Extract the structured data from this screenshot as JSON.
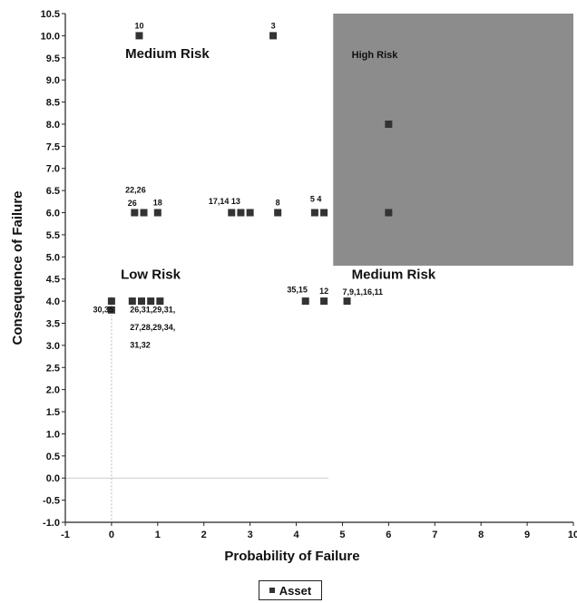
{
  "chart_data": {
    "type": "scatter",
    "xlabel": "Probability of Failure",
    "ylabel": "Consequence of Failure",
    "xlim": [
      -1,
      10
    ],
    "ylim": [
      -1,
      10.5
    ],
    "xticks": [
      "-1",
      "0",
      "1",
      "2",
      "3",
      "4",
      "5",
      "6",
      "7",
      "8",
      "9",
      "10"
    ],
    "yticks": [
      "-1.0",
      "-0.5",
      "0.0",
      "0.5",
      "1.0",
      "1.5",
      "2.0",
      "2.5",
      "3.0",
      "3.5",
      "4.0",
      "4.5",
      "5.0",
      "5.5",
      "6.0",
      "6.5",
      "7.0",
      "7.5",
      "8.0",
      "8.5",
      "9.0",
      "9.5",
      "10.0",
      "10.5"
    ],
    "legend": {
      "placement": "bottom-center",
      "entries": [
        "Asset"
      ]
    },
    "zones": [
      {
        "label": "Medium Risk",
        "x": 0.3,
        "y": 9.5,
        "size": "large"
      },
      {
        "label": "High Risk",
        "x": 5.2,
        "y": 9.5,
        "size": "small"
      },
      {
        "label": "Low Risk",
        "x": 0.2,
        "y": 4.5,
        "size": "large"
      },
      {
        "label": "Medium Risk",
        "x": 5.2,
        "y": 4.5,
        "size": "large"
      }
    ],
    "high_risk_region": {
      "x": [
        4.8,
        10
      ],
      "y": [
        4.8,
        10.5
      ],
      "color": "#8c8c8c"
    },
    "series": [
      {
        "name": "Asset",
        "color": "#333333",
        "points": [
          {
            "x": 0.6,
            "y": 10.0,
            "label": "10"
          },
          {
            "x": 3.5,
            "y": 10.0,
            "label": "3"
          },
          {
            "x": 0.5,
            "y": 6.0,
            "label": ""
          },
          {
            "x": 0.7,
            "y": 6.0,
            "label": ""
          },
          {
            "x": 1.0,
            "y": 6.0,
            "label": "18"
          },
          {
            "x": 2.6,
            "y": 6.0,
            "label": ""
          },
          {
            "x": 2.8,
            "y": 6.0,
            "label": ""
          },
          {
            "x": 3.0,
            "y": 6.0,
            "label": ""
          },
          {
            "x": 3.6,
            "y": 6.0,
            "label": "8"
          },
          {
            "x": 4.4,
            "y": 6.0,
            "label": ""
          },
          {
            "x": 4.6,
            "y": 6.0,
            "label": ""
          },
          {
            "x": 6.0,
            "y": 8.0,
            "label": ""
          },
          {
            "x": 6.0,
            "y": 6.0,
            "label": ""
          },
          {
            "x": 0.0,
            "y": 4.0,
            "label": ""
          },
          {
            "x": 0.0,
            "y": 3.8,
            "label": ""
          },
          {
            "x": 0.45,
            "y": 4.0,
            "label": ""
          },
          {
            "x": 0.65,
            "y": 4.0,
            "label": ""
          },
          {
            "x": 0.85,
            "y": 4.0,
            "label": ""
          },
          {
            "x": 1.05,
            "y": 4.0,
            "label": ""
          },
          {
            "x": 4.2,
            "y": 4.0,
            "label": ""
          },
          {
            "x": 4.6,
            "y": 4.0,
            "label": "12"
          },
          {
            "x": 5.1,
            "y": 4.0,
            "label": ""
          }
        ]
      }
    ],
    "annotations": [
      {
        "text": "22,26",
        "x": 0.3,
        "y": 6.45
      },
      {
        "text": "26",
        "x": 0.35,
        "y": 6.15
      },
      {
        "text": "17,14 13",
        "x": 2.1,
        "y": 6.2
      },
      {
        "text": "5 4",
        "x": 4.3,
        "y": 6.25
      },
      {
        "text": "30,35",
        "x": -0.4,
        "y": 3.75
      },
      {
        "text": "26,31,29,31,",
        "x": 0.4,
        "y": 3.75
      },
      {
        "text": "27,28,29,34,",
        "x": 0.4,
        "y": 3.35
      },
      {
        "text": "31,32",
        "x": 0.4,
        "y": 2.95
      },
      {
        "text": "35,15",
        "x": 3.8,
        "y": 4.2
      },
      {
        "text": "7,9,1,16,11",
        "x": 5.0,
        "y": 4.15
      }
    ]
  }
}
